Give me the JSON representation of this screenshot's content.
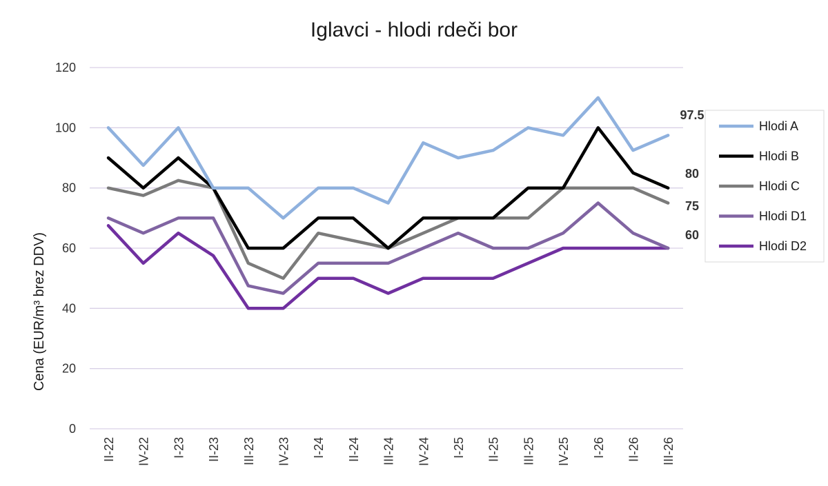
{
  "chart_data": {
    "type": "line",
    "title": "Iglavci - hlodi rdeči bor",
    "ylabel": "Cena (EUR/m³ brez DDV)",
    "xlabel": "",
    "ylim": [
      0,
      120
    ],
    "yticks": [
      0,
      20,
      40,
      60,
      80,
      100,
      120
    ],
    "grid": true,
    "legend_position": "right",
    "categories": [
      "II-22",
      "IV-22",
      "I-23",
      "II-23",
      "III-23",
      "IV-23",
      "I-24",
      "II-24",
      "III-24",
      "IV-24",
      "I-25",
      "II-25",
      "III-25",
      "IV-25",
      "I-26",
      "II-26",
      "III-26"
    ],
    "series": [
      {
        "name": "Hlodi A",
        "color": "#8fb1de",
        "values": [
          100,
          87.5,
          100,
          80,
          80,
          70,
          80,
          80,
          75,
          95,
          90,
          92.5,
          100,
          97.5,
          110,
          92.5,
          97.5
        ]
      },
      {
        "name": "Hlodi B",
        "color": "#000000",
        "values": [
          90,
          80,
          90,
          80,
          60,
          60,
          70,
          70,
          60,
          70,
          70,
          70,
          80,
          80,
          100,
          85,
          80
        ]
      },
      {
        "name": "Hlodi C",
        "color": "#7b7b7b",
        "values": [
          80,
          77.5,
          82.5,
          80,
          55,
          50,
          65,
          62.5,
          60,
          65,
          70,
          70,
          70,
          80,
          80,
          80,
          75
        ]
      },
      {
        "name": "Hlodi D1",
        "color": "#8064a2",
        "values": [
          70,
          65,
          70,
          70,
          47.5,
          45,
          55,
          55,
          55,
          60,
          65,
          60,
          60,
          65,
          75,
          65,
          60
        ]
      },
      {
        "name": "Hlodi D2",
        "color": "#7030a0",
        "values": [
          67.5,
          55,
          65,
          57.5,
          40,
          40,
          50,
          50,
          45,
          50,
          50,
          50,
          55,
          60,
          60,
          60,
          60
        ]
      }
    ],
    "end_labels": [
      "97.5",
      "80",
      "75",
      "60"
    ]
  }
}
